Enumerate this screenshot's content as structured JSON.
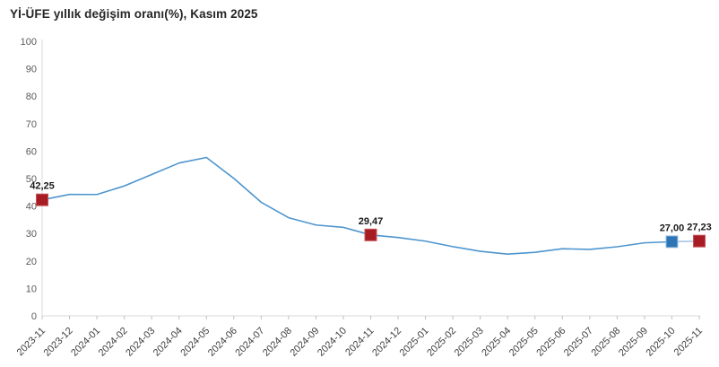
{
  "title": "Yİ-ÜFE yıllık değişim oranı(%), Kasım 2025",
  "chart_data": {
    "type": "line",
    "title": "Yİ-ÜFE yıllık değişim oranı(%), Kasım 2025",
    "xlabel": "",
    "ylabel": "",
    "ylim": [
      0,
      100
    ],
    "ytick_step": 10,
    "grid": false,
    "legend": "none",
    "x": [
      "2023-11",
      "2023-12",
      "2024-01",
      "2024-02",
      "2024-03",
      "2024-04",
      "2024-05",
      "2024-06",
      "2024-07",
      "2024-08",
      "2024-09",
      "2024-10",
      "2024-11",
      "2024-12",
      "2025-01",
      "2025-02",
      "2025-03",
      "2025-04",
      "2025-05",
      "2025-06",
      "2025-07",
      "2025-08",
      "2025-09",
      "2025-10",
      "2025-11"
    ],
    "series": [
      {
        "name": "Yİ-ÜFE yıllık değişim oranı (%)",
        "color": "#4E95CE",
        "values": [
          42.25,
          44.22,
          44.2,
          47.29,
          51.47,
          55.66,
          57.68,
          50.09,
          41.37,
          35.75,
          33.09,
          32.24,
          29.47,
          28.52,
          27.2,
          25.21,
          23.5,
          22.5,
          23.13,
          24.45,
          24.19,
          25.16,
          26.59,
          27.0,
          27.23
        ]
      }
    ],
    "last_segment_color": "#AECBE8",
    "highlighted_points": [
      {
        "x": "2023-11",
        "value": 42.25,
        "label": "42,25",
        "fill": "#A81D23",
        "stroke": "#C4565B"
      },
      {
        "x": "2024-11",
        "value": 29.47,
        "label": "29,47",
        "fill": "#A81D23",
        "stroke": "#C4565B"
      },
      {
        "x": "2025-10",
        "value": 27.0,
        "label": "27,00",
        "fill": "#2E75B6",
        "stroke": "#9DC3E6"
      },
      {
        "x": "2025-11",
        "value": 27.23,
        "label": "27,23",
        "fill": "#A81D23",
        "stroke": "#C4565B"
      }
    ],
    "colors": {
      "axis_line": "#D9D9D9",
      "tick_mark": "#BFBFBF",
      "y_tick_label": "#595959",
      "x_tick_label": "#404040",
      "value_label": "#1A1A1A",
      "title": "#262626"
    }
  }
}
